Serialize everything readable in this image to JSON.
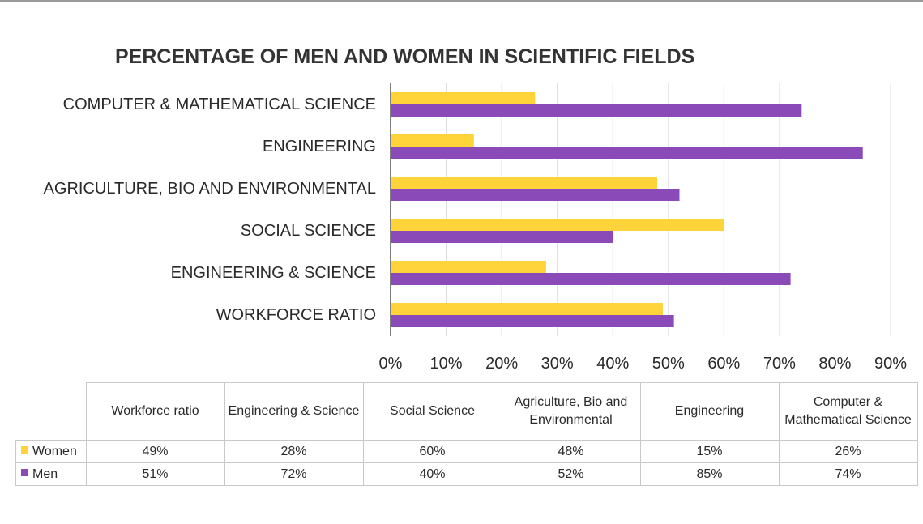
{
  "chart_data": {
    "type": "bar",
    "orientation": "horizontal",
    "title": "PERCENTAGE OF MEN AND WOMEN IN SCIENTIFIC FIELDS",
    "categories": [
      "COMPUTER & MATHEMATICAL SCIENCE",
      "ENGINEERING",
      "AGRICULTURE, BIO AND ENVIRONMENTAL",
      "SOCIAL SCIENCE",
      "ENGINEERING & SCIENCE",
      "WORKFORCE RATIO"
    ],
    "series": [
      {
        "name": "Women",
        "color": "#FFD43B",
        "values": [
          26,
          15,
          48,
          60,
          28,
          49
        ]
      },
      {
        "name": "Men",
        "color": "#8A4BB8",
        "values": [
          74,
          85,
          52,
          40,
          72,
          51
        ]
      }
    ],
    "xlim": [
      0,
      90
    ],
    "ticks": [
      0,
      10,
      20,
      30,
      40,
      50,
      60,
      70,
      80,
      90
    ],
    "tick_labels": [
      "0%",
      "10%",
      "20%",
      "30%",
      "40%",
      "50%",
      "60%",
      "70%",
      "80%",
      "90%"
    ],
    "xlabel": "",
    "ylabel": "",
    "grid": true
  },
  "data_table": {
    "headers": [
      "Workforce ratio",
      "Engineering & Science",
      "Social Science",
      "Agriculture, Bio and Environmental",
      "Engineering",
      "Computer & Mathematical Science"
    ],
    "rows": [
      {
        "label": "Women",
        "color": "#FFD43B",
        "values": [
          "49%",
          "28%",
          "60%",
          "48%",
          "15%",
          "26%"
        ]
      },
      {
        "label": "Men",
        "color": "#8A4BB8",
        "values": [
          "51%",
          "72%",
          "40%",
          "52%",
          "85%",
          "74%"
        ]
      }
    ]
  }
}
